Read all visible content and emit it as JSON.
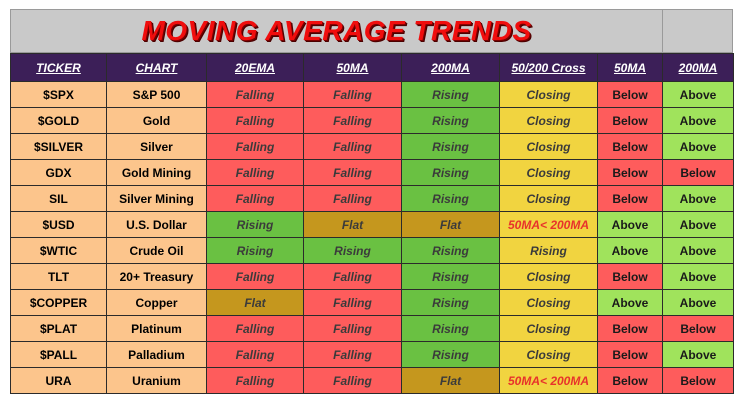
{
  "title": "MOVING AVERAGE TRENDS",
  "columns": [
    "TICKER",
    "CHART",
    "20EMA",
    "50MA",
    "200MA",
    "50/200 Cross",
    "50MA",
    "200MA"
  ],
  "colors": {
    "Falling": "#fe5c5c",
    "Rising": "#6ac142",
    "Flat": "#c5971e",
    "Closing": "#f1d440",
    "50MA< 200MA": "#fe5c5c",
    "Below": "#fe5c5c",
    "Above": "#a0e35c"
  },
  "rows": [
    {
      "ticker": "$SPX",
      "chart": "S&P 500",
      "ema20": "Falling",
      "ma50": "Falling",
      "ma200": "Rising",
      "cross": "Closing",
      "vs50": "Below",
      "vs200": "Above"
    },
    {
      "ticker": "$GOLD",
      "chart": "Gold",
      "ema20": "Falling",
      "ma50": "Falling",
      "ma200": "Rising",
      "cross": "Closing",
      "vs50": "Below",
      "vs200": "Above"
    },
    {
      "ticker": "$SILVER",
      "chart": "Silver",
      "ema20": "Falling",
      "ma50": "Falling",
      "ma200": "Rising",
      "cross": "Closing",
      "vs50": "Below",
      "vs200": "Above"
    },
    {
      "ticker": "GDX",
      "chart": "Gold Mining",
      "ema20": "Falling",
      "ma50": "Falling",
      "ma200": "Rising",
      "cross": "Closing",
      "vs50": "Below",
      "vs200": "Below"
    },
    {
      "ticker": "SIL",
      "chart": "Silver Mining",
      "ema20": "Falling",
      "ma50": "Falling",
      "ma200": "Rising",
      "cross": "Closing",
      "vs50": "Below",
      "vs200": "Above"
    },
    {
      "ticker": "$USD",
      "chart": "U.S. Dollar",
      "ema20": "Rising",
      "ma50": "Flat",
      "ma200": "Flat",
      "cross": "50MA< 200MA",
      "vs50": "Above",
      "vs200": "Above"
    },
    {
      "ticker": "$WTIC",
      "chart": "Crude Oil",
      "ema20": "Rising",
      "ma50": "Rising",
      "ma200": "Rising",
      "cross": "Rising",
      "vs50": "Above",
      "vs200": "Above"
    },
    {
      "ticker": "TLT",
      "chart": "20+ Treasury",
      "ema20": "Falling",
      "ma50": "Falling",
      "ma200": "Rising",
      "cross": "Closing",
      "vs50": "Below",
      "vs200": "Above"
    },
    {
      "ticker": "$COPPER",
      "chart": "Copper",
      "ema20": "Flat",
      "ma50": "Falling",
      "ma200": "Rising",
      "cross": "Closing",
      "vs50": "Above",
      "vs200": "Above"
    },
    {
      "ticker": "$PLAT",
      "chart": "Platinum",
      "ema20": "Falling",
      "ma50": "Falling",
      "ma200": "Rising",
      "cross": "Closing",
      "vs50": "Below",
      "vs200": "Below"
    },
    {
      "ticker": "$PALL",
      "chart": "Palladium",
      "ema20": "Falling",
      "ma50": "Falling",
      "ma200": "Rising",
      "cross": "Closing",
      "vs50": "Below",
      "vs200": "Above"
    },
    {
      "ticker": "URA",
      "chart": "Uranium",
      "ema20": "Falling",
      "ma50": "Falling",
      "ma200": "Flat",
      "cross": "50MA< 200MA",
      "vs50": "Below",
      "vs200": "Below"
    }
  ]
}
